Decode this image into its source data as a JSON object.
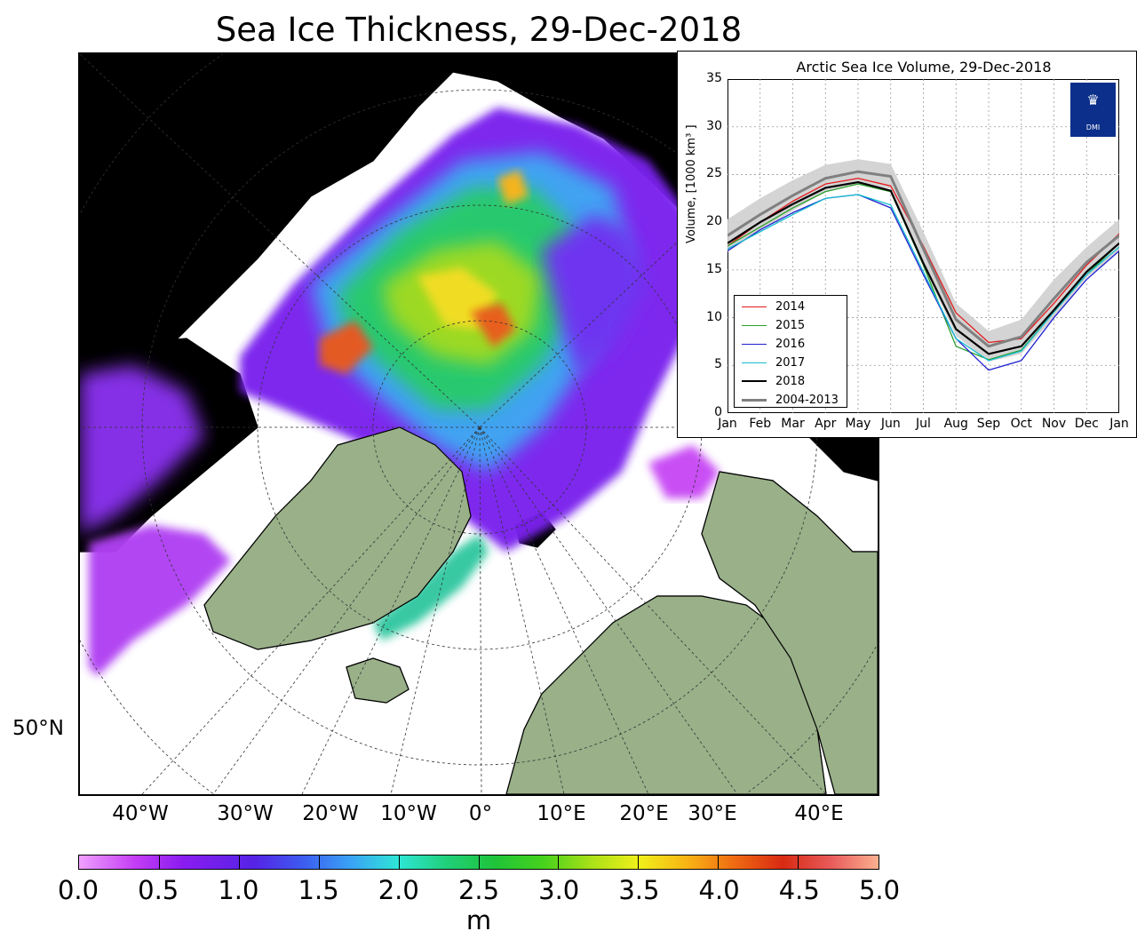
{
  "title": "Sea Ice Thickness, 29-Dec-2018",
  "map": {
    "lat_label": "50°N",
    "lon_labels": [
      "40°W",
      "30°W",
      "20°W",
      "10°W",
      "0°",
      "10°E",
      "20°E",
      "30°E",
      "40°E"
    ],
    "land_color": "#99b089",
    "ocean_color": "#ffffff"
  },
  "colorbar": {
    "ticks": [
      "0.0",
      "0.5",
      "1.0",
      "1.5",
      "2.0",
      "2.5",
      "3.0",
      "3.5",
      "4.0",
      "4.5",
      "5.0"
    ],
    "unit": "m",
    "range": [
      0,
      5
    ]
  },
  "inset": {
    "logo_text": "DMI",
    "chart_data": {
      "type": "line",
      "title": "Arctic Sea Ice Volume, 29-Dec-2018",
      "ylabel": "Volume, [1000 km³ ]",
      "xlabel": "",
      "ylim": [
        0,
        35
      ],
      "y_ticks": [
        "0",
        "5",
        "10",
        "15",
        "20",
        "25",
        "30",
        "35"
      ],
      "x_tick_labels": [
        "Jan",
        "Feb",
        "Mar",
        "Apr",
        "May",
        "Jun",
        "Jul",
        "Aug",
        "Sep",
        "Oct",
        "Nov",
        "Dec",
        "Jan"
      ],
      "grid": true,
      "legend_position": "bottom-left",
      "x": [
        "Jan",
        "Feb",
        "Mar",
        "Apr",
        "May",
        "Jun",
        "Jul",
        "Aug",
        "Sep",
        "Oct",
        "Nov",
        "Dec",
        "Jan"
      ],
      "series": [
        {
          "name": "2014",
          "color": "#e41a1c",
          "values": [
            17.5,
            20.0,
            22.2,
            24.0,
            24.6,
            23.8,
            17.5,
            10.5,
            7.4,
            7.8,
            11.5,
            15.5,
            18.8
          ]
        },
        {
          "name": "2015",
          "color": "#2ca02c",
          "values": [
            17.5,
            19.5,
            21.5,
            23.2,
            24.0,
            23.2,
            15.5,
            7.0,
            5.6,
            6.6,
            10.6,
            14.5,
            17.8
          ]
        },
        {
          "name": "2016",
          "color": "#1f1fd0",
          "values": [
            17.0,
            19.2,
            21.0,
            22.5,
            22.9,
            21.5,
            14.5,
            7.8,
            4.5,
            5.5,
            10.0,
            14.0,
            17.0
          ]
        },
        {
          "name": "2017",
          "color": "#17becf",
          "values": [
            17.2,
            19.0,
            20.8,
            22.5,
            22.9,
            21.8,
            14.8,
            7.8,
            5.5,
            6.5,
            10.6,
            14.5,
            17.4
          ]
        },
        {
          "name": "2018",
          "color": "#000000",
          "values": [
            17.8,
            20.0,
            21.9,
            23.6,
            24.2,
            23.3,
            15.7,
            8.8,
            6.2,
            7.0,
            10.8,
            14.8,
            17.8
          ]
        },
        {
          "name": "2004-2013",
          "color": "#808080",
          "values": [
            18.6,
            20.8,
            22.8,
            24.6,
            25.3,
            24.8,
            17.2,
            9.8,
            7.0,
            8.0,
            12.0,
            15.8,
            18.6
          ]
        }
      ],
      "band": {
        "color": "#cfcfcf",
        "upper": [
          20.3,
          22.5,
          24.4,
          26.0,
          26.6,
          26.1,
          19.0,
          11.5,
          8.6,
          9.8,
          14.0,
          17.4,
          20.3
        ],
        "lower": [
          16.9,
          19.1,
          21.2,
          23.2,
          24.0,
          23.5,
          15.4,
          8.1,
          5.4,
          6.2,
          10.0,
          14.2,
          16.9
        ]
      }
    }
  }
}
